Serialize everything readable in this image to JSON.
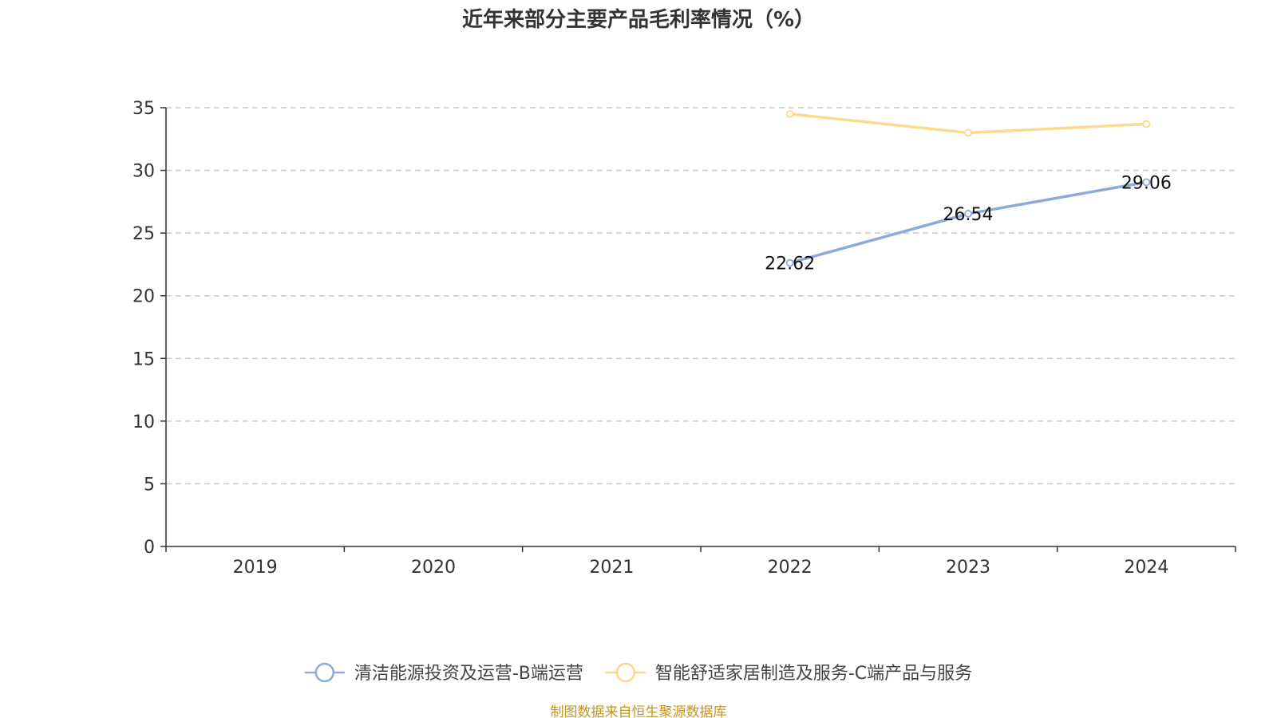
{
  "chart_data": {
    "type": "line",
    "title": "近年来部分主要产品毛利率情况（%）",
    "categories": [
      "2019",
      "2020",
      "2021",
      "2022",
      "2023",
      "2024"
    ],
    "ylim": [
      0,
      35
    ],
    "yticks": [
      0,
      5,
      10,
      15,
      20,
      25,
      30,
      35
    ],
    "grid": true,
    "legend_position": "bottom",
    "series": [
      {
        "name": "清洁能源投资及运营-B端运营",
        "color": "#8eabd8",
        "values": [
          null,
          null,
          null,
          22.62,
          26.54,
          29.06
        ],
        "labels": [
          null,
          null,
          null,
          "22.62",
          "26.54",
          "29.06"
        ]
      },
      {
        "name": "智能舒适家居制造及服务-C端产品与服务",
        "color": "#fdd98f",
        "values": [
          null,
          null,
          null,
          34.5,
          33.0,
          33.7
        ],
        "labels": [
          null,
          null,
          null,
          null,
          null,
          null
        ]
      }
    ]
  },
  "source": "制图数据来自恒生聚源数据库"
}
